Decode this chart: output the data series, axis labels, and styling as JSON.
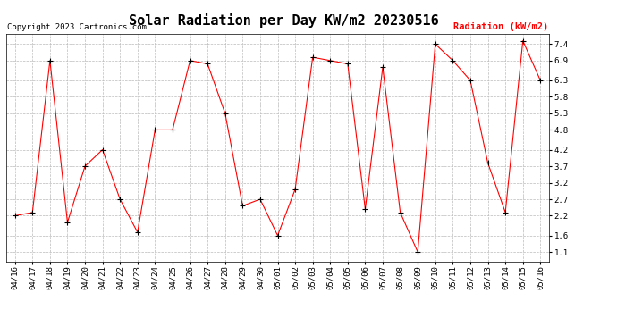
{
  "title": "Solar Radiation per Day KW/m2 20230516",
  "copyright": "Copyright 2023 Cartronics.com",
  "legend_label": "Radiation (kW/m2)",
  "dates": [
    "04/16",
    "04/17",
    "04/18",
    "04/19",
    "04/20",
    "04/21",
    "04/22",
    "04/23",
    "04/24",
    "04/25",
    "04/26",
    "04/27",
    "04/28",
    "04/29",
    "04/30",
    "05/01",
    "05/02",
    "05/03",
    "05/04",
    "05/05",
    "05/06",
    "05/07",
    "05/08",
    "05/09",
    "05/10",
    "05/11",
    "05/12",
    "05/13",
    "05/14",
    "05/15",
    "05/16"
  ],
  "values": [
    2.2,
    2.3,
    6.9,
    2.0,
    3.7,
    4.2,
    2.7,
    1.7,
    4.8,
    4.8,
    6.9,
    6.8,
    5.3,
    2.5,
    2.7,
    1.6,
    3.0,
    7.0,
    6.9,
    6.8,
    2.4,
    6.7,
    2.3,
    1.1,
    7.4,
    6.9,
    6.3,
    3.8,
    2.3,
    7.5,
    6.3
  ],
  "line_color": "red",
  "marker_color": "black",
  "background_color": "#ffffff",
  "grid_color": "#bbbbbb",
  "ylim_min": 0.82,
  "ylim_max": 7.72,
  "yticks": [
    1.1,
    1.6,
    2.2,
    2.7,
    3.2,
    3.7,
    4.2,
    4.8,
    5.3,
    5.8,
    6.3,
    6.9,
    7.4
  ],
  "title_fontsize": 11,
  "tick_fontsize": 6.5,
  "copyright_fontsize": 6.5,
  "legend_fontsize": 7.5
}
